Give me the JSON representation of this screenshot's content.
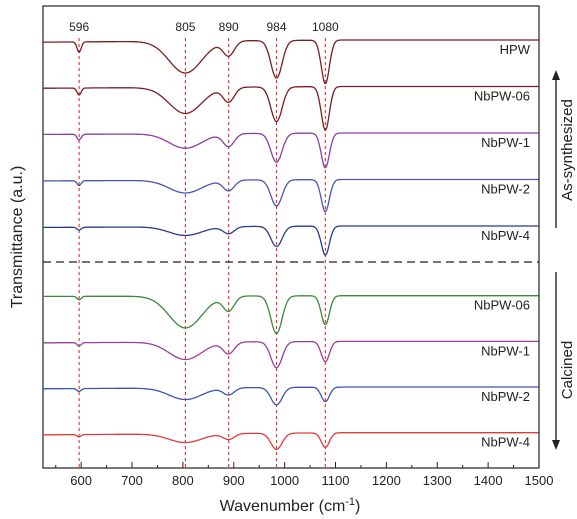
{
  "chart_data": {
    "type": "line",
    "xlabel": "Wavenumber (cm",
    "xlabel_sup": "-1",
    "xlabel_suffix": ")",
    "ylabel": "Transmittance (a.u.)",
    "xlim": [
      525,
      1500
    ],
    "xticks": [
      600,
      700,
      800,
      900,
      1000,
      1100,
      1200,
      1300,
      1400,
      1500
    ],
    "peak_markers": [
      {
        "x": 596,
        "label": "596"
      },
      {
        "x": 805,
        "label": "805"
      },
      {
        "x": 890,
        "label": "890"
      },
      {
        "x": 984,
        "label": "984"
      },
      {
        "x": 1080,
        "label": "1080"
      }
    ],
    "groups": [
      {
        "label": "As-synthesized",
        "series": [
          "HPW",
          "NbPW-06",
          "NbPW-1",
          "NbPW-2",
          "NbPW-4"
        ]
      },
      {
        "label": "Calcined",
        "series": [
          "NbPW-06",
          "NbPW-1",
          "NbPW-2",
          "NbPW-4"
        ]
      }
    ],
    "series": [
      {
        "name": "HPW",
        "color": "#7a1e1e",
        "offset": 0.0,
        "depths": [
          0.18,
          0.55,
          0.25,
          0.65,
          0.75
        ],
        "baseline_tilt": 0.15
      },
      {
        "name": "NbPW-06",
        "color": "#7a1e1e",
        "offset": 1.0,
        "depths": [
          0.12,
          0.45,
          0.25,
          0.6,
          0.75
        ],
        "baseline_tilt": 0.12
      },
      {
        "name": "NbPW-1",
        "color": "#8a3fa0",
        "offset": 2.0,
        "depths": [
          0.1,
          0.25,
          0.22,
          0.5,
          0.6
        ],
        "baseline_tilt": 0.1
      },
      {
        "name": "NbPW-2",
        "color": "#4a55b0",
        "offset": 3.0,
        "depths": [
          0.08,
          0.22,
          0.18,
          0.45,
          0.55
        ],
        "baseline_tilt": 0.1
      },
      {
        "name": "NbPW-4",
        "color": "#2a3a8a",
        "offset": 4.0,
        "depths": [
          0.05,
          0.15,
          0.12,
          0.35,
          0.5
        ],
        "baseline_tilt": 0.1
      },
      {
        "name": "NbPW-06",
        "color": "#3a8a3a",
        "offset": 5.6,
        "depths": [
          0.06,
          0.55,
          0.25,
          0.65,
          0.5
        ],
        "baseline_tilt": 0.05
      },
      {
        "name": "NbPW-1",
        "color": "#9a3f9a",
        "offset": 6.6,
        "depths": [
          0.06,
          0.3,
          0.2,
          0.45,
          0.35
        ],
        "baseline_tilt": 0.1
      },
      {
        "name": "NbPW-2",
        "color": "#3a55b0",
        "offset": 7.6,
        "depths": [
          0.05,
          0.2,
          0.12,
          0.3,
          0.25
        ],
        "baseline_tilt": 0.12
      },
      {
        "name": "NbPW-4",
        "color": "#e03a3a",
        "offset": 8.6,
        "depths": [
          0.04,
          0.15,
          0.1,
          0.28,
          0.25
        ],
        "baseline_tilt": 0.15
      }
    ]
  }
}
